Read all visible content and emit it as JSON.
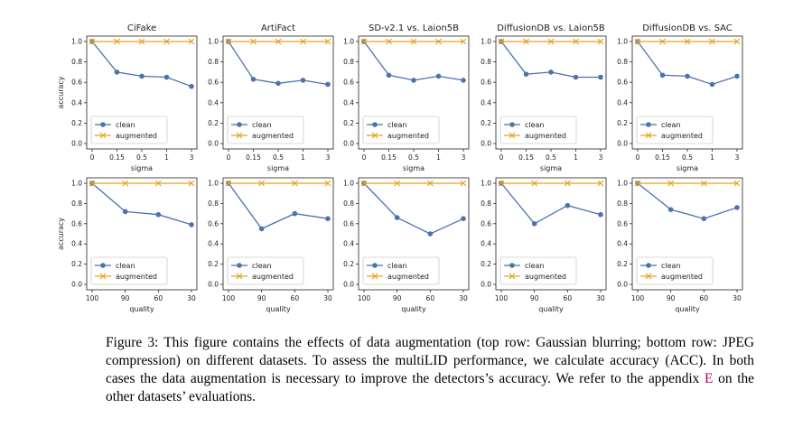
{
  "colors": {
    "clean": "#4c72b0",
    "augmented": "#e8a020"
  },
  "rows": [
    {
      "ylabel": "accuracy",
      "xlabel": "sigma",
      "x_ticks": [
        "0",
        "0.15",
        "0.5",
        "1",
        "3"
      ],
      "y_ticks": [
        "0.0",
        "0.2",
        "0.4",
        "0.6",
        "0.8",
        "1.0"
      ]
    },
    {
      "ylabel": "accuracy",
      "xlabel": "quality",
      "x_ticks": [
        "100",
        "90",
        "60",
        "30"
      ],
      "y_ticks": [
        "0.0",
        "0.2",
        "0.4",
        "0.6",
        "0.8",
        "1.0"
      ]
    }
  ],
  "chart_data": [
    {
      "type": "line",
      "title": "CiFake",
      "xlabel": "sigma",
      "ylabel": "accuracy",
      "x": [
        "0",
        "0.15",
        "0.5",
        "1",
        "3"
      ],
      "ylim": [
        0,
        1
      ],
      "legend": "lower-left",
      "series": [
        {
          "name": "clean",
          "values": [
            1.0,
            0.7,
            0.66,
            0.65,
            0.56
          ]
        },
        {
          "name": "augmented",
          "values": [
            1.0,
            1.0,
            1.0,
            1.0,
            1.0
          ]
        }
      ]
    },
    {
      "type": "line",
      "title": "ArtiFact",
      "xlabel": "sigma",
      "ylabel": "",
      "x": [
        "0",
        "0.15",
        "0.5",
        "1",
        "3"
      ],
      "ylim": [
        0,
        1
      ],
      "legend": "lower-left",
      "series": [
        {
          "name": "clean",
          "values": [
            1.0,
            0.63,
            0.59,
            0.62,
            0.58
          ]
        },
        {
          "name": "augmented",
          "values": [
            1.0,
            1.0,
            1.0,
            1.0,
            1.0
          ]
        }
      ]
    },
    {
      "type": "line",
      "title": "SD-v2.1 vs. Laion5B",
      "xlabel": "sigma",
      "ylabel": "",
      "x": [
        "0",
        "0.15",
        "0.5",
        "1",
        "3"
      ],
      "ylim": [
        0,
        1
      ],
      "legend": "lower-left",
      "series": [
        {
          "name": "clean",
          "values": [
            1.0,
            0.67,
            0.62,
            0.66,
            0.62
          ]
        },
        {
          "name": "augmented",
          "values": [
            1.0,
            1.0,
            1.0,
            1.0,
            1.0
          ]
        }
      ]
    },
    {
      "type": "line",
      "title": "DiffusionDB vs. Laion5B",
      "xlabel": "sigma",
      "ylabel": "",
      "x": [
        "0",
        "0.15",
        "0.5",
        "1",
        "3"
      ],
      "ylim": [
        0,
        1
      ],
      "legend": "lower-left",
      "series": [
        {
          "name": "clean",
          "values": [
            1.0,
            0.68,
            0.7,
            0.65,
            0.65
          ]
        },
        {
          "name": "augmented",
          "values": [
            1.0,
            1.0,
            1.0,
            1.0,
            1.0
          ]
        }
      ]
    },
    {
      "type": "line",
      "title": "DiffusionDB vs. SAC",
      "xlabel": "sigma",
      "ylabel": "",
      "x": [
        "0",
        "0.15",
        "0.5",
        "1",
        "3"
      ],
      "ylim": [
        0,
        1
      ],
      "legend": "lower-left",
      "series": [
        {
          "name": "clean",
          "values": [
            1.0,
            0.67,
            0.66,
            0.58,
            0.66
          ]
        },
        {
          "name": "augmented",
          "values": [
            1.0,
            1.0,
            1.0,
            1.0,
            1.0
          ]
        }
      ]
    },
    {
      "type": "line",
      "title": "",
      "xlabel": "quality",
      "ylabel": "accuracy",
      "x": [
        "100",
        "90",
        "60",
        "30"
      ],
      "ylim": [
        0,
        1
      ],
      "legend": "lower-left",
      "series": [
        {
          "name": "clean",
          "values": [
            1.0,
            0.72,
            0.69,
            0.59
          ]
        },
        {
          "name": "augmented",
          "values": [
            1.0,
            1.0,
            1.0,
            1.0
          ]
        }
      ]
    },
    {
      "type": "line",
      "title": "",
      "xlabel": "quality",
      "ylabel": "",
      "x": [
        "100",
        "90",
        "60",
        "30"
      ],
      "ylim": [
        0,
        1
      ],
      "legend": "lower-left",
      "series": [
        {
          "name": "clean",
          "values": [
            1.0,
            0.55,
            0.7,
            0.65
          ]
        },
        {
          "name": "augmented",
          "values": [
            1.0,
            1.0,
            1.0,
            1.0
          ]
        }
      ]
    },
    {
      "type": "line",
      "title": "",
      "xlabel": "quality",
      "ylabel": "",
      "x": [
        "100",
        "90",
        "60",
        "30"
      ],
      "ylim": [
        0,
        1
      ],
      "legend": "lower-left",
      "series": [
        {
          "name": "clean",
          "values": [
            1.0,
            0.66,
            0.5,
            0.65
          ]
        },
        {
          "name": "augmented",
          "values": [
            1.0,
            1.0,
            1.0,
            1.0
          ]
        }
      ]
    },
    {
      "type": "line",
      "title": "",
      "xlabel": "quality",
      "ylabel": "",
      "x": [
        "100",
        "90",
        "60",
        "30"
      ],
      "ylim": [
        0,
        1
      ],
      "legend": "lower-left",
      "series": [
        {
          "name": "clean",
          "values": [
            1.0,
            0.6,
            0.78,
            0.69
          ]
        },
        {
          "name": "augmented",
          "values": [
            1.0,
            1.0,
            1.0,
            1.0
          ]
        }
      ]
    },
    {
      "type": "line",
      "title": "",
      "xlabel": "quality",
      "ylabel": "",
      "x": [
        "100",
        "90",
        "60",
        "30"
      ],
      "ylim": [
        0,
        1
      ],
      "legend": "lower-left",
      "series": [
        {
          "name": "clean",
          "values": [
            1.0,
            0.74,
            0.65,
            0.76
          ]
        },
        {
          "name": "augmented",
          "values": [
            1.0,
            1.0,
            1.0,
            1.0
          ]
        }
      ]
    }
  ],
  "caption": {
    "text_before": "Figure 3: This figure contains the effects of data augmentation (top row: Gaussian blurring; bottom row: JPEG compression) on different datasets. To assess the multiLID performance, we calculate accuracy (ACC). In both cases the data augmentation is necessary to improve the detectors’s accuracy. We refer to the appendix ",
    "ref": "E",
    "text_after": " on the other datasets’ evaluations."
  }
}
